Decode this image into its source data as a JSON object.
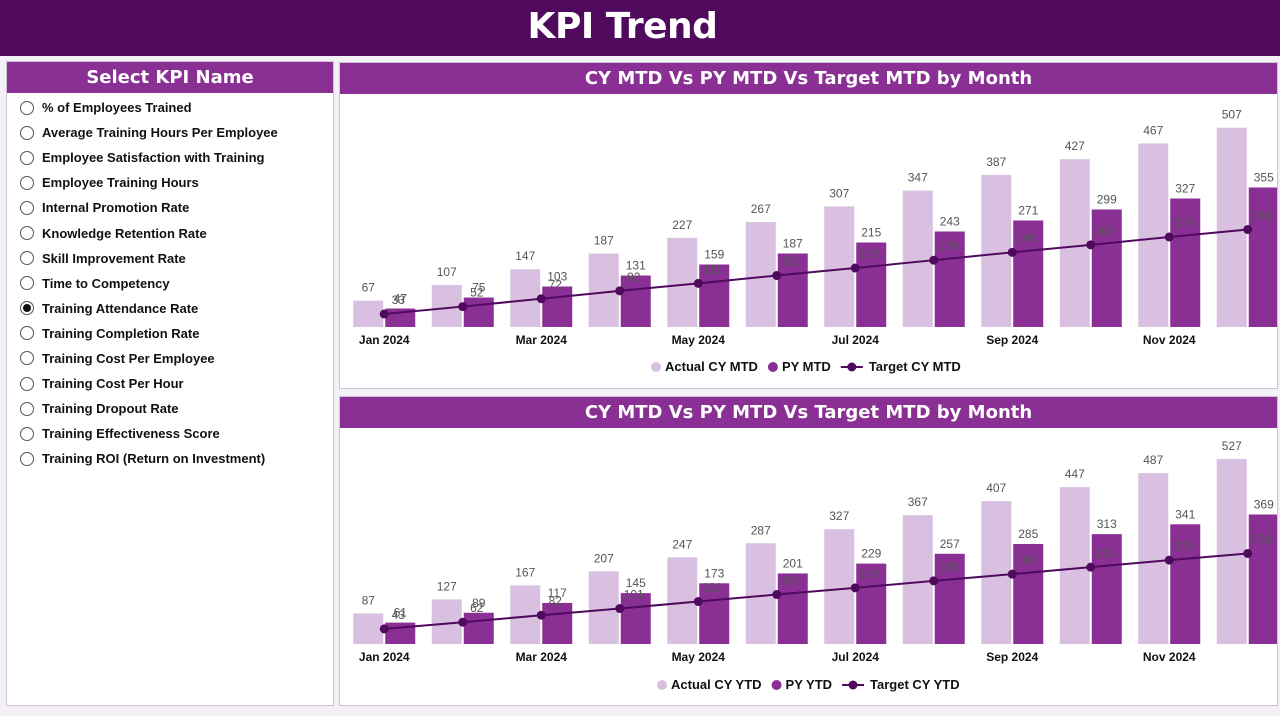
{
  "header": {
    "title": "KPI Trend"
  },
  "slicer": {
    "title": "Select KPI Name",
    "items": [
      {
        "label": "% of Employees Trained",
        "selected": false
      },
      {
        "label": "Average Training Hours Per Employee",
        "selected": false
      },
      {
        "label": "Employee Satisfaction with Training",
        "selected": false
      },
      {
        "label": "Employee Training Hours",
        "selected": false
      },
      {
        "label": "Internal Promotion Rate",
        "selected": false
      },
      {
        "label": "Knowledge Retention Rate",
        "selected": false
      },
      {
        "label": "Skill Improvement Rate",
        "selected": false
      },
      {
        "label": "Time to Competency",
        "selected": false
      },
      {
        "label": "Training Attendance Rate",
        "selected": true
      },
      {
        "label": "Training Completion Rate",
        "selected": false
      },
      {
        "label": "Training Cost Per Employee",
        "selected": false
      },
      {
        "label": "Training Cost Per Hour",
        "selected": false
      },
      {
        "label": "Training Dropout Rate",
        "selected": false
      },
      {
        "label": "Training Effectiveness Score",
        "selected": false
      },
      {
        "label": "Training ROI (Return on Investment)",
        "selected": false
      }
    ]
  },
  "colors": {
    "header_bg": "#4f0a5e",
    "panel_header_bg": "#8a2f94",
    "actual": "#d9bfe0",
    "py": "#8a2f94",
    "target": "#4f0a5e"
  },
  "chart_data": [
    {
      "type": "bar",
      "title": "CY MTD Vs PY MTD Vs Target MTD by Month",
      "categories": [
        "Jan 2024",
        "Feb 2024",
        "Mar 2024",
        "Apr 2024",
        "May 2024",
        "Jun 2024",
        "Jul 2024",
        "Aug 2024",
        "Sep 2024",
        "Oct 2024",
        "Nov 2024",
        "Dec 2024"
      ],
      "tick_labels": [
        "Jan 2024",
        "",
        "Mar 2024",
        "",
        "May 2024",
        "",
        "Jul 2024",
        "",
        "Sep 2024",
        "",
        "Nov 2024",
        ""
      ],
      "series": [
        {
          "name": "Actual CY MTD",
          "kind": "bar",
          "values": [
            67,
            107,
            147,
            187,
            227,
            267,
            307,
            347,
            387,
            427,
            467,
            507
          ]
        },
        {
          "name": "PY MTD",
          "kind": "bar",
          "values": [
            47,
            75,
            103,
            131,
            159,
            187,
            215,
            243,
            271,
            299,
            327,
            355
          ]
        },
        {
          "name": "Target CY MTD",
          "kind": "line",
          "values": [
            33,
            52,
            72,
            92,
            111,
            131,
            150,
            170,
            190,
            209,
            229,
            248
          ]
        }
      ],
      "legend_position": "bottom-center",
      "grid": false
    },
    {
      "type": "bar",
      "title": "CY MTD Vs PY MTD Vs Target MTD by Month",
      "categories": [
        "Jan 2024",
        "Feb 2024",
        "Mar 2024",
        "Apr 2024",
        "May 2024",
        "Jun 2024",
        "Jul 2024",
        "Aug 2024",
        "Sep 2024",
        "Oct 2024",
        "Nov 2024",
        "Dec 2024"
      ],
      "tick_labels": [
        "Jan 2024",
        "",
        "Mar 2024",
        "",
        "May 2024",
        "",
        "Jul 2024",
        "",
        "Sep 2024",
        "",
        "Nov 2024",
        ""
      ],
      "series": [
        {
          "name": "Actual CY YTD",
          "kind": "bar",
          "values": [
            87,
            127,
            167,
            207,
            247,
            287,
            327,
            367,
            407,
            447,
            487,
            527
          ]
        },
        {
          "name": "PY YTD",
          "kind": "bar",
          "values": [
            61,
            89,
            117,
            145,
            173,
            201,
            229,
            257,
            285,
            313,
            341,
            369
          ]
        },
        {
          "name": "Target CY YTD",
          "kind": "line",
          "values": [
            43,
            62,
            82,
            101,
            121,
            141,
            160,
            180,
            199,
            219,
            239,
            258
          ]
        }
      ],
      "legend_position": "bottom-center",
      "grid": false
    }
  ]
}
